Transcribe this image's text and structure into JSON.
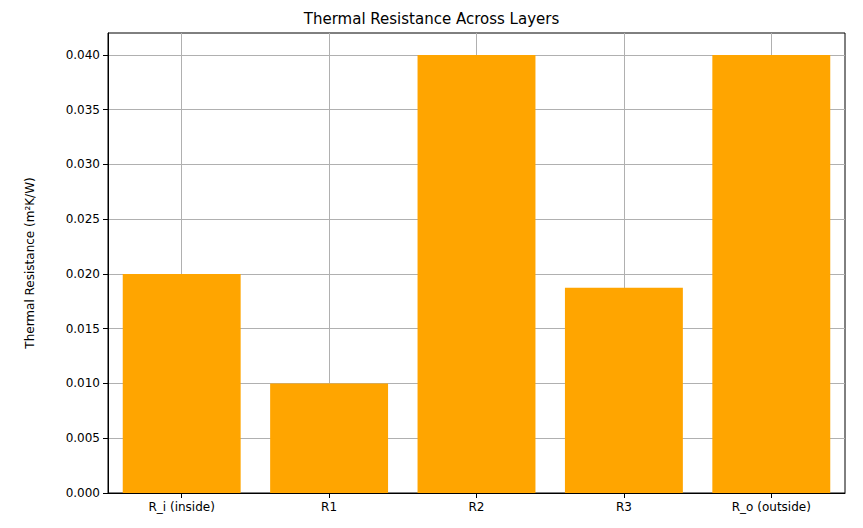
{
  "chart_data": {
    "type": "bar",
    "title": "Thermal Resistance Across Layers",
    "y_label": "Thermal Resistance (m²K/W)",
    "categories": [
      "R_i (inside)",
      "R1",
      "R2",
      "R3",
      "R_o (outside)"
    ],
    "values": [
      0.02,
      0.01,
      0.04,
      0.01875,
      0.04
    ],
    "color": "#ffa500",
    "ylim": [
      0,
      0.042
    ],
    "yticks": [
      {
        "value": 0,
        "label": "0.000"
      },
      {
        "value": 0.005,
        "label": "0.005"
      },
      {
        "value": 0.01,
        "label": "0.010"
      },
      {
        "value": 0.015,
        "label": "0.015"
      },
      {
        "value": 0.02,
        "label": "0.020"
      },
      {
        "value": 0.025,
        "label": "0.025"
      },
      {
        "value": 0.03,
        "label": "0.030"
      },
      {
        "value": 0.035,
        "label": "0.035"
      },
      {
        "value": 0.04,
        "label": "0.040"
      }
    ],
    "grid": true
  }
}
